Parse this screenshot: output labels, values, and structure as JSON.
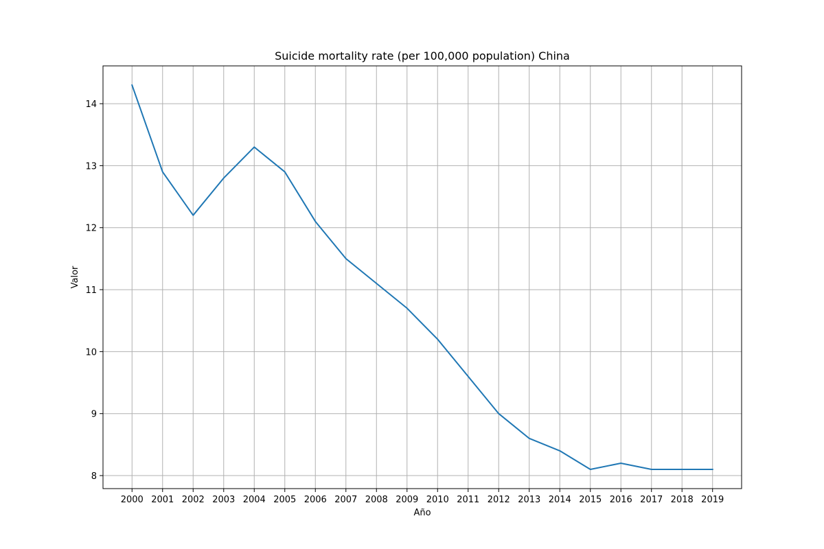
{
  "chart_data": {
    "type": "line",
    "title": "Suicide mortality rate (per 100,000 population) China",
    "xlabel": "Año",
    "ylabel": "Valor",
    "x": [
      2000,
      2001,
      2002,
      2003,
      2004,
      2005,
      2006,
      2007,
      2008,
      2009,
      2010,
      2011,
      2012,
      2013,
      2014,
      2015,
      2016,
      2017,
      2018,
      2019
    ],
    "x_tick_labels": [
      "2000",
      "2001",
      "2002",
      "2003",
      "2004",
      "2005",
      "2006",
      "2007",
      "2008",
      "2009",
      "2010",
      "2011",
      "2012",
      "2013",
      "2014",
      "2015",
      "2016",
      "2017",
      "2018",
      "2019"
    ],
    "y_ticks": [
      8,
      9,
      10,
      11,
      12,
      13,
      14
    ],
    "y_tick_labels": [
      "8",
      "9",
      "10",
      "11",
      "12",
      "13",
      "14"
    ],
    "series": [
      {
        "color": "#1f77b4",
        "values": [
          14.3,
          12.9,
          12.2,
          12.8,
          13.3,
          12.9,
          12.1,
          11.5,
          11.1,
          10.7,
          10.2,
          9.6,
          9.0,
          8.6,
          8.4,
          8.1,
          8.2,
          8.1,
          8.1,
          8.1
        ]
      }
    ],
    "xlim": [
      1999.05,
      2019.95
    ],
    "ylim": [
      7.79,
      14.61
    ],
    "grid": true,
    "grid_color": "#b0b0b0",
    "axis_color": "#000000"
  }
}
